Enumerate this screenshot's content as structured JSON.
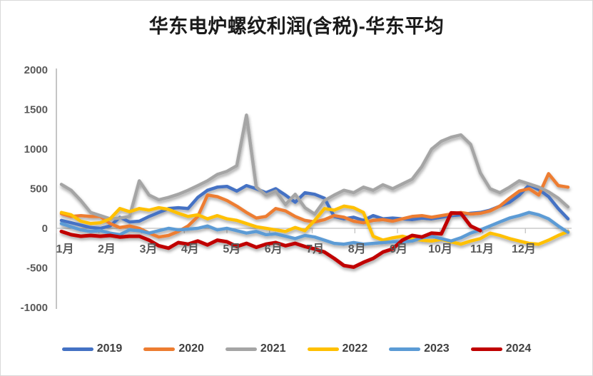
{
  "chart_data": {
    "type": "line",
    "title": "华东电炉螺纹利润(含税)-华东平均",
    "xlabel": "",
    "ylabel": "",
    "x_tick_labels": [
      "1月",
      "2月",
      "3月",
      "4月",
      "5月",
      "6月",
      "7月",
      "8月",
      "9月",
      "10月",
      "11月",
      "12月"
    ],
    "y_ticks": [
      2000,
      1500,
      1000,
      500,
      0,
      -500,
      -1000
    ],
    "ylim": [
      -1000,
      2000
    ],
    "grid": false,
    "legend_position": "bottom",
    "axis_color": "#a6a6a6",
    "tick_color": "#bfbfbf",
    "tick_label_color": "#595959",
    "points_per_year": 53,
    "series": [
      {
        "name": "2019",
        "color": "#4472C4",
        "values": [
          100,
          70,
          40,
          10,
          0,
          30,
          140,
          80,
          90,
          150,
          200,
          250,
          260,
          250,
          390,
          480,
          520,
          530,
          470,
          540,
          500,
          450,
          500,
          420,
          330,
          450,
          430,
          380,
          150,
          120,
          140,
          100,
          160,
          120,
          130,
          120,
          110,
          130,
          120,
          140,
          160,
          170,
          190,
          200,
          230,
          280,
          330,
          420,
          545,
          490,
          400,
          250,
          120
        ]
      },
      {
        "name": "2020",
        "color": "#ED7D31",
        "values": [
          185,
          150,
          160,
          150,
          150,
          60,
          10,
          30,
          0,
          -60,
          -110,
          -90,
          -40,
          30,
          150,
          420,
          400,
          350,
          280,
          200,
          130,
          150,
          250,
          220,
          150,
          100,
          80,
          110,
          160,
          140,
          90,
          70,
          100,
          110,
          90,
          120,
          150,
          160,
          140,
          160,
          180,
          200,
          180,
          190,
          220,
          280,
          380,
          470,
          500,
          420,
          690,
          540,
          520
        ]
      },
      {
        "name": "2021",
        "color": "#A5A5A5",
        "values": [
          555,
          480,
          350,
          200,
          160,
          120,
          130,
          150,
          600,
          420,
          360,
          390,
          430,
          480,
          540,
          600,
          680,
          720,
          790,
          1430,
          520,
          420,
          470,
          300,
          430,
          260,
          180,
          350,
          420,
          480,
          450,
          520,
          480,
          550,
          500,
          560,
          620,
          780,
          1000,
          1100,
          1150,
          1180,
          1060,
          700,
          500,
          450,
          520,
          600,
          560,
          520,
          460,
          380,
          270
        ]
      },
      {
        "name": "2022",
        "color": "#FFC000",
        "values": [
          200,
          170,
          90,
          60,
          70,
          120,
          250,
          210,
          250,
          230,
          260,
          240,
          190,
          150,
          170,
          120,
          160,
          120,
          100,
          60,
          20,
          0,
          -20,
          -40,
          10,
          -30,
          100,
          250,
          230,
          280,
          260,
          200,
          -100,
          -150,
          -120,
          -100,
          -130,
          -150,
          -160,
          -140,
          -170,
          -200,
          -160,
          -130,
          -60,
          -90,
          -130,
          -160,
          -190,
          -200,
          -150,
          -90,
          -40
        ]
      },
      {
        "name": "2023",
        "color": "#5B9BD5",
        "values": [
          60,
          20,
          -20,
          -40,
          -30,
          -60,
          -80,
          -20,
          -30,
          -60,
          -30,
          0,
          -20,
          -10,
          0,
          30,
          -20,
          0,
          -30,
          -60,
          -40,
          -80,
          -70,
          -100,
          -130,
          -90,
          -110,
          -150,
          -190,
          -200,
          -180,
          -200,
          -190,
          -180,
          -170,
          -170,
          -160,
          -120,
          -100,
          -130,
          -160,
          -120,
          -60,
          -20,
          30,
          80,
          130,
          160,
          200,
          170,
          120,
          30,
          -50
        ]
      },
      {
        "name": "2024",
        "color": "#C00000",
        "values": [
          -40,
          -80,
          -100,
          -90,
          -100,
          -90,
          -110,
          -100,
          -100,
          -150,
          -220,
          -250,
          -180,
          -200,
          -160,
          -210,
          -150,
          -170,
          -230,
          -190,
          -240,
          -200,
          -180,
          -220,
          -190,
          -230,
          -260,
          -300,
          -380,
          -470,
          -490,
          -430,
          -380,
          -300,
          -260,
          -150,
          -90,
          -110,
          -60,
          -70,
          195,
          190,
          30,
          -30
        ]
      }
    ]
  }
}
